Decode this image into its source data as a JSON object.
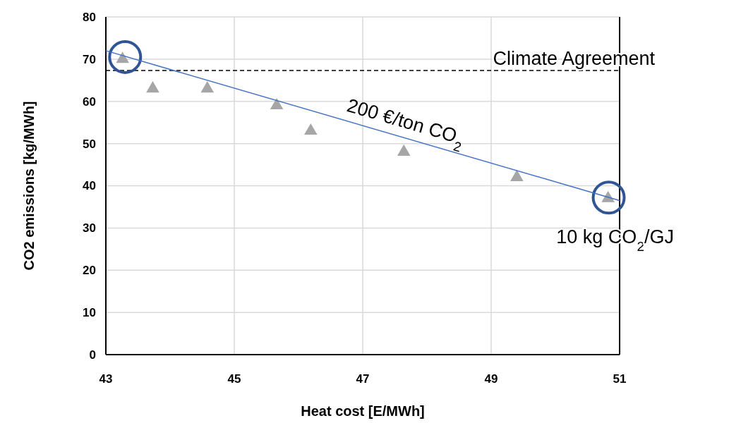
{
  "chart_data": {
    "type": "scatter",
    "xlabel": "Heat cost [E/MWh]",
    "ylabel": "CO2 emissions [kg/MWh]",
    "xlim": [
      43,
      51
    ],
    "xticks": [
      43,
      45,
      47,
      49,
      51
    ],
    "ylim": [
      0,
      80
    ],
    "yticks": [
      0,
      10,
      20,
      30,
      40,
      50,
      60,
      70,
      80
    ],
    "grid": true,
    "marker": "triangle",
    "series": [
      {
        "marker": "circle",
        "color": "#2f5597",
        "x": [
          43.3,
          50.83
        ],
        "values": [
          70.5,
          37.2
        ]
      },
      {
        "color": "#a6a6a6",
        "x": [
          43.26,
          43.73,
          44.58,
          45.66,
          46.19,
          47.64,
          49.4,
          50.82
        ],
        "values": [
          70,
          63,
          63,
          59,
          53,
          48,
          42,
          37
        ]
      },
      {
        "type": "line",
        "marker": "none",
        "color": "#4472c4",
        "x": [
          43,
          51
        ],
        "values": [
          72,
          36.5
        ]
      }
    ],
    "ref_lines": [
      {
        "axis": "y",
        "value": 67.3,
        "label": "Climate Agreement",
        "color": "#000000",
        "line_style": "dashed"
      }
    ],
    "annotations": [
      "200 €/ton CO$_{2}$",
      "10 kg CO$_{2}$/GJ"
    ]
  }
}
